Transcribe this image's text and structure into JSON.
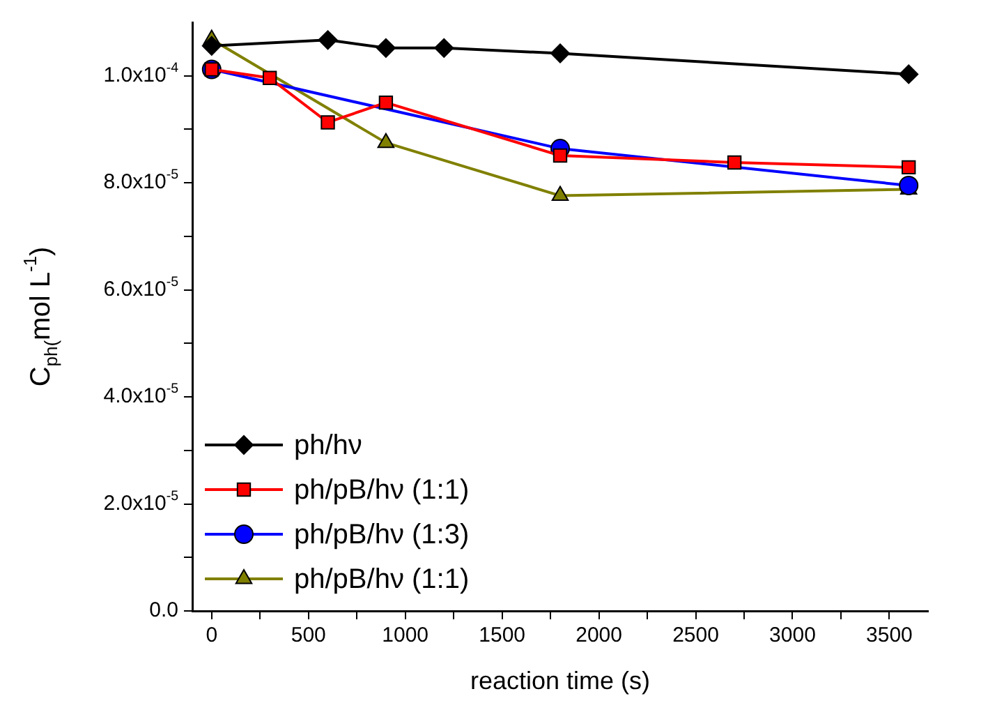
{
  "chart_data": {
    "type": "line",
    "xlabel": "reaction time (s)",
    "ylabel": "C$_{ph(}$mol L$^{-1}$)",
    "xlim": [
      -100,
      3700
    ],
    "xticks": [
      0,
      {
        "value": 250,
        "label": null
      },
      500,
      {
        "value": 750,
        "label": null
      },
      1000,
      {
        "value": 1250,
        "label": null
      },
      1500,
      {
        "value": 1750,
        "label": null
      },
      2000,
      {
        "value": 2250,
        "label": null
      },
      2500,
      {
        "value": 2750,
        "label": null
      },
      3000,
      {
        "value": 3250,
        "label": null
      },
      3500
    ],
    "ylim": [
      0,
      0.00011
    ],
    "yticks": [
      {
        "value": 0,
        "label": "0.0"
      },
      {
        "value": 1e-05,
        "label": null
      },
      {
        "value": 2e-05,
        "label": "2.0x10$^{-5}$"
      },
      {
        "value": 3e-05,
        "label": null
      },
      {
        "value": 4e-05,
        "label": "4.0x10$^{-5}$"
      },
      {
        "value": 5e-05,
        "label": null
      },
      {
        "value": 6e-05,
        "label": "6.0x10$^{-5}$"
      },
      {
        "value": 7e-05,
        "label": null
      },
      {
        "value": 8e-05,
        "label": "8.0x10$^{-5}$"
      },
      {
        "value": 9e-05,
        "label": null
      },
      {
        "value": 0.0001,
        "label": "1.0x10$^{-4}$"
      }
    ],
    "grid": false,
    "legend": "bottom left",
    "line_style": "solid",
    "series": [
      {
        "name": "ph/hν",
        "color": "#000000",
        "marker": "diamond",
        "x": [
          0,
          600,
          900,
          1200,
          1800,
          3600
        ],
        "values": [
          0.0001056,
          0.0001067,
          0.0001052,
          0.0001052,
          0.0001042,
          0.0001003
        ]
      },
      {
        "name": "ph/pB/hν (1:1)",
        "color": "#ff0000",
        "marker": "square",
        "x": [
          0,
          300,
          600,
          900,
          1800,
          2700,
          3600
        ],
        "values": [
          0.0001012,
          9.96e-05,
          9.13e-05,
          9.5e-05,
          8.51e-05,
          8.38e-05,
          8.29e-05
        ]
      },
      {
        "name": "ph/pB/hν (1:3)",
        "color": "#0000ff",
        "marker": "circle",
        "x": [
          0,
          1800,
          3600
        ],
        "values": [
          0.0001012,
          8.64e-05,
          7.95e-05
        ]
      },
      {
        "name": "ph/pB/hν (1:1)",
        "color": "#808000",
        "marker": "triangle",
        "x": [
          0,
          900,
          1800,
          3600
        ],
        "values": [
          0.0001068,
          8.75e-05,
          7.76e-05,
          7.88e-05
        ]
      }
    ]
  }
}
